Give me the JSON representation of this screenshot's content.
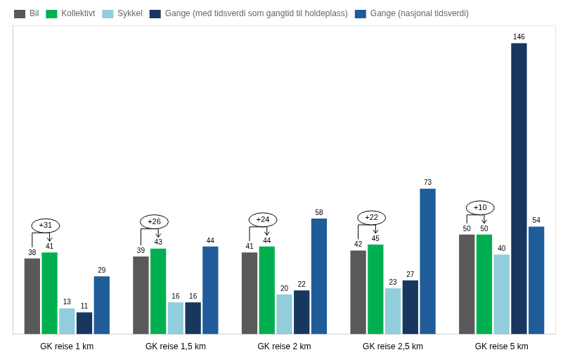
{
  "chart_data": {
    "type": "bar",
    "categories": [
      "GK reise 1 km",
      "GK reise 1,5 km",
      "GK reise 2 km",
      "GK reise 2,5 km",
      "GK reise 5 km"
    ],
    "series": [
      {
        "name": "Bil",
        "color": "#595959",
        "values": [
          38,
          39,
          41,
          42,
          50
        ]
      },
      {
        "name": "Kollektivt",
        "color": "#00b050",
        "values": [
          41,
          43,
          44,
          45,
          50
        ]
      },
      {
        "name": "Sykkel",
        "color": "#92cddc",
        "values": [
          13,
          16,
          20,
          23,
          40
        ]
      },
      {
        "name": "Gange (med tidsverdi som gangtid til holdeplass)",
        "color": "#17375e",
        "values": [
          11,
          16,
          22,
          27,
          146
        ]
      },
      {
        "name": "Gange (nasjonal tidsverdi)",
        "color": "#1f5c99",
        "values": [
          29,
          44,
          58,
          73,
          54
        ]
      }
    ],
    "ylim": [
      0,
      155
    ],
    "yticks": [],
    "tick_labels": "x",
    "grid": false,
    "legend": "upper left",
    "data_labels": true,
    "annotations": [
      {
        "category": "GK reise 1 km",
        "text": "+31",
        "between": [
          "Bil",
          "Kollektivt"
        ]
      },
      {
        "category": "GK reise 1,5 km",
        "text": "+26",
        "between": [
          "Bil",
          "Kollektivt"
        ]
      },
      {
        "category": "GK reise 2 km",
        "text": "+24",
        "between": [
          "Bil",
          "Kollektivt"
        ]
      },
      {
        "category": "GK reise 2,5 km",
        "text": "+22",
        "between": [
          "Bil",
          "Kollektivt"
        ]
      },
      {
        "category": "GK reise 5 km",
        "text": "+10",
        "between": [
          "Bil",
          "Kollektivt"
        ]
      }
    ]
  }
}
